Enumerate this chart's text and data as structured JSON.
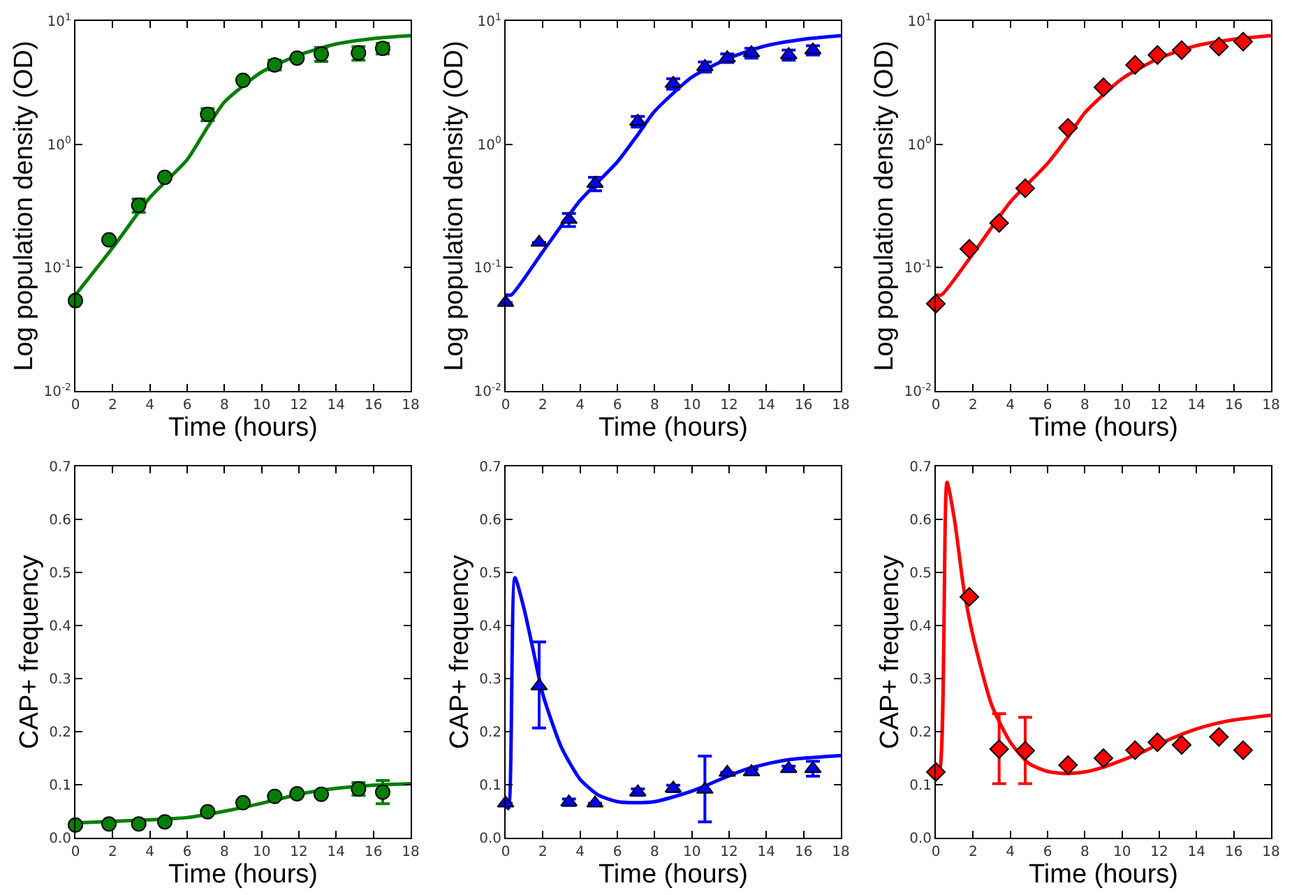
{
  "chart_data": [
    {
      "type": "scatter",
      "xlabel": "Time (hours)",
      "ylabel": "Log population density (OD)",
      "log": "y",
      "grid": false,
      "xlim": [
        0,
        18
      ],
      "xticks": [
        0,
        2,
        4,
        6,
        8,
        10,
        12,
        14,
        16,
        18
      ],
      "ylim": [
        0.01,
        10
      ],
      "yticks": [
        {
          "value": 0.01,
          "label": "10$^{-2}$"
        },
        {
          "value": 0.1,
          "label": "10$^{-1}$"
        },
        {
          "value": 1,
          "label": "10$^{0}$"
        },
        {
          "value": 10,
          "label": "10$^{1}$"
        }
      ],
      "series": [
        {
          "marker": "circle",
          "color": "#007f00",
          "x": [
            0,
            1.8,
            3.4,
            4.8,
            7.1,
            9.0,
            10.7,
            11.9,
            13.2,
            15.2,
            16.5
          ],
          "values": [
            0.054,
            0.168,
            0.32,
            0.54,
            1.75,
            3.3,
            4.4,
            5.0,
            5.4,
            5.5,
            6.0
          ],
          "errors": [
            null,
            null,
            0.04,
            null,
            0.2,
            null,
            0.4,
            null,
            0.7,
            0.7,
            0.6
          ]
        },
        {
          "type": "line",
          "marker": "none",
          "color": "#007f00",
          "x": [
            0,
            2,
            4,
            6,
            7.1,
            8,
            10,
            12,
            14,
            16,
            18
          ],
          "values": [
            0.06,
            0.145,
            0.37,
            0.75,
            1.38,
            2.2,
            3.85,
            5.3,
            6.5,
            7.2,
            7.6
          ]
        }
      ]
    },
    {
      "type": "scatter",
      "xlabel": "Time (hours)",
      "ylabel": "Log population density (OD)",
      "log": "y",
      "grid": false,
      "xlim": [
        0,
        18
      ],
      "xticks": [
        0,
        2,
        4,
        6,
        8,
        10,
        12,
        14,
        16,
        18
      ],
      "ylim": [
        0.01,
        10
      ],
      "yticks": [
        {
          "value": 0.01,
          "label": "10$^{-2}$"
        },
        {
          "value": 0.1,
          "label": "10$^{-1}$"
        },
        {
          "value": 1,
          "label": "10$^{0}$"
        },
        {
          "value": 10,
          "label": "10$^{1}$"
        }
      ],
      "series": [
        {
          "marker": "triangle",
          "color": "#0000ff",
          "x": [
            0,
            1.8,
            3.4,
            4.8,
            7.1,
            9.0,
            10.7,
            11.9,
            13.2,
            15.2,
            16.5
          ],
          "values": [
            0.052,
            0.16,
            0.245,
            0.48,
            1.53,
            3.1,
            4.25,
            5.0,
            5.5,
            5.3,
            5.8
          ],
          "errors": [
            null,
            null,
            0.03,
            0.06,
            0.15,
            0.3,
            0.4,
            0.4,
            0.5,
            0.5,
            0.5
          ]
        },
        {
          "type": "line",
          "marker": "none",
          "color": "#0000ff",
          "x": [
            0,
            0.3,
            2,
            4,
            6,
            7.1,
            8,
            10,
            12,
            14,
            16,
            18
          ],
          "values": [
            0.06,
            0.06,
            0.135,
            0.35,
            0.72,
            1.2,
            1.85,
            3.5,
            5.0,
            6.3,
            7.1,
            7.6
          ]
        }
      ]
    },
    {
      "type": "scatter",
      "xlabel": "Time (hours)",
      "ylabel": "Log population density (OD)",
      "log": "y",
      "grid": false,
      "xlim": [
        0,
        18
      ],
      "xticks": [
        0,
        2,
        4,
        6,
        8,
        10,
        12,
        14,
        16,
        18
      ],
      "ylim": [
        0.01,
        10
      ],
      "yticks": [
        {
          "value": 0.01,
          "label": "10$^{-2}$"
        },
        {
          "value": 0.1,
          "label": "10$^{-1}$"
        },
        {
          "value": 1,
          "label": "10$^{0}$"
        },
        {
          "value": 10,
          "label": "10$^{1}$"
        }
      ],
      "series": [
        {
          "marker": "diamond",
          "color": "#ff0000",
          "x": [
            0,
            1.8,
            3.4,
            4.8,
            7.1,
            9.0,
            10.7,
            11.9,
            13.2,
            15.2,
            16.5
          ],
          "values": [
            0.051,
            0.142,
            0.23,
            0.44,
            1.36,
            2.9,
            4.4,
            5.3,
            5.8,
            6.2,
            6.8
          ]
        },
        {
          "type": "line",
          "marker": "none",
          "color": "#ff0000",
          "x": [
            0,
            0.3,
            2,
            4,
            6,
            7.1,
            8,
            10,
            12,
            14,
            16,
            18
          ],
          "values": [
            0.06,
            0.06,
            0.13,
            0.34,
            0.7,
            1.15,
            1.8,
            3.4,
            5.0,
            6.3,
            7.1,
            7.6
          ]
        }
      ]
    },
    {
      "type": "scatter",
      "xlabel": "Time (hours)",
      "ylabel": "CAP+ frequency",
      "grid": false,
      "xlim": [
        0,
        18
      ],
      "xticks": [
        0,
        2,
        4,
        6,
        8,
        10,
        12,
        14,
        16,
        18
      ],
      "ylim": [
        0,
        0.7
      ],
      "yticks": [
        {
          "value": 0,
          "label": "0.0"
        },
        0.1,
        0.2,
        0.3,
        0.4,
        0.5,
        0.6,
        0.7
      ],
      "series": [
        {
          "marker": "circle",
          "color": "#007f00",
          "x": [
            0,
            1.8,
            3.4,
            4.8,
            7.1,
            9.0,
            10.7,
            11.9,
            13.2,
            15.2,
            16.5
          ],
          "values": [
            0.024,
            0.026,
            0.026,
            0.03,
            0.049,
            0.066,
            0.078,
            0.083,
            0.082,
            0.092,
            0.086
          ],
          "errors": [
            null,
            null,
            null,
            null,
            null,
            null,
            null,
            null,
            null,
            0.012,
            0.022
          ]
        },
        {
          "type": "line",
          "marker": "none",
          "color": "#007f00",
          "x": [
            0,
            4,
            6,
            8,
            10,
            12,
            14,
            16,
            18
          ],
          "values": [
            0.028,
            0.034,
            0.038,
            0.05,
            0.065,
            0.082,
            0.093,
            0.099,
            0.102
          ]
        }
      ]
    },
    {
      "type": "scatter",
      "xlabel": "Time (hours)",
      "ylabel": "CAP+ frequency",
      "grid": false,
      "xlim": [
        0,
        18
      ],
      "xticks": [
        0,
        2,
        4,
        6,
        8,
        10,
        12,
        14,
        16,
        18
      ],
      "ylim": [
        0,
        0.7
      ],
      "yticks": [
        {
          "value": 0,
          "label": "0.0"
        },
        0.1,
        0.2,
        0.3,
        0.4,
        0.5,
        0.6,
        0.7
      ],
      "series": [
        {
          "marker": "triangle",
          "color": "#0000ff",
          "x": [
            0,
            1.8,
            3.4,
            4.8,
            7.1,
            9.0,
            10.7,
            11.9,
            13.2,
            15.2,
            16.5
          ],
          "values": [
            0.065,
            0.286,
            0.067,
            0.065,
            0.086,
            0.093,
            0.091,
            0.123,
            0.124,
            0.13,
            0.13
          ],
          "errors": [
            null,
            [
              0.207,
              0.369
            ],
            0.006,
            null,
            0.006,
            0.006,
            [
              0.03,
              0.154
            ],
            null,
            0.005,
            0.005,
            0.014
          ]
        },
        {
          "type": "line",
          "marker": "none",
          "color": "#0000ff",
          "x": [
            0,
            0.15,
            0.5,
            1,
            1.5,
            2,
            3,
            4,
            5,
            6,
            7,
            8,
            9,
            10,
            11,
            12,
            13,
            14,
            15,
            16,
            18
          ],
          "values": [
            0.06,
            0.055,
            0.49,
            0.43,
            0.35,
            0.27,
            0.17,
            0.11,
            0.08,
            0.068,
            0.066,
            0.068,
            0.077,
            0.088,
            0.102,
            0.117,
            0.13,
            0.139,
            0.146,
            0.15,
            0.155
          ]
        }
      ]
    },
    {
      "type": "scatter",
      "xlabel": "Time (hours)",
      "ylabel": "CAP+ frequency",
      "grid": false,
      "xlim": [
        0,
        18
      ],
      "xticks": [
        0,
        2,
        4,
        6,
        8,
        10,
        12,
        14,
        16,
        18
      ],
      "ylim": [
        0,
        0.7
      ],
      "yticks": [
        {
          "value": 0,
          "label": "0.0"
        },
        0.1,
        0.2,
        0.3,
        0.4,
        0.5,
        0.6,
        0.7
      ],
      "series": [
        {
          "marker": "diamond",
          "color": "#ff0000",
          "x": [
            0,
            1.8,
            3.4,
            4.8,
            7.1,
            9.0,
            10.7,
            11.9,
            13.2,
            15.2,
            16.5
          ],
          "values": [
            0.124,
            0.454,
            0.167,
            0.164,
            0.137,
            0.15,
            0.165,
            0.18,
            0.175,
            0.19,
            0.165
          ],
          "errors": [
            null,
            null,
            [
              0.102,
              0.234
            ],
            [
              0.102,
              0.227
            ],
            null,
            null,
            null,
            null,
            null,
            null,
            null
          ]
        },
        {
          "type": "line",
          "marker": "none",
          "color": "#ff0000",
          "x": [
            0,
            0.2,
            0.6,
            1,
            1.5,
            2,
            3,
            4,
            5,
            6,
            7,
            8,
            9,
            10,
            11,
            12,
            13,
            14,
            15,
            16,
            18
          ],
          "values": [
            0.12,
            0.125,
            0.67,
            0.6,
            0.47,
            0.38,
            0.25,
            0.18,
            0.14,
            0.125,
            0.121,
            0.124,
            0.133,
            0.146,
            0.16,
            0.177,
            0.192,
            0.205,
            0.215,
            0.222,
            0.231
          ]
        }
      ]
    }
  ]
}
